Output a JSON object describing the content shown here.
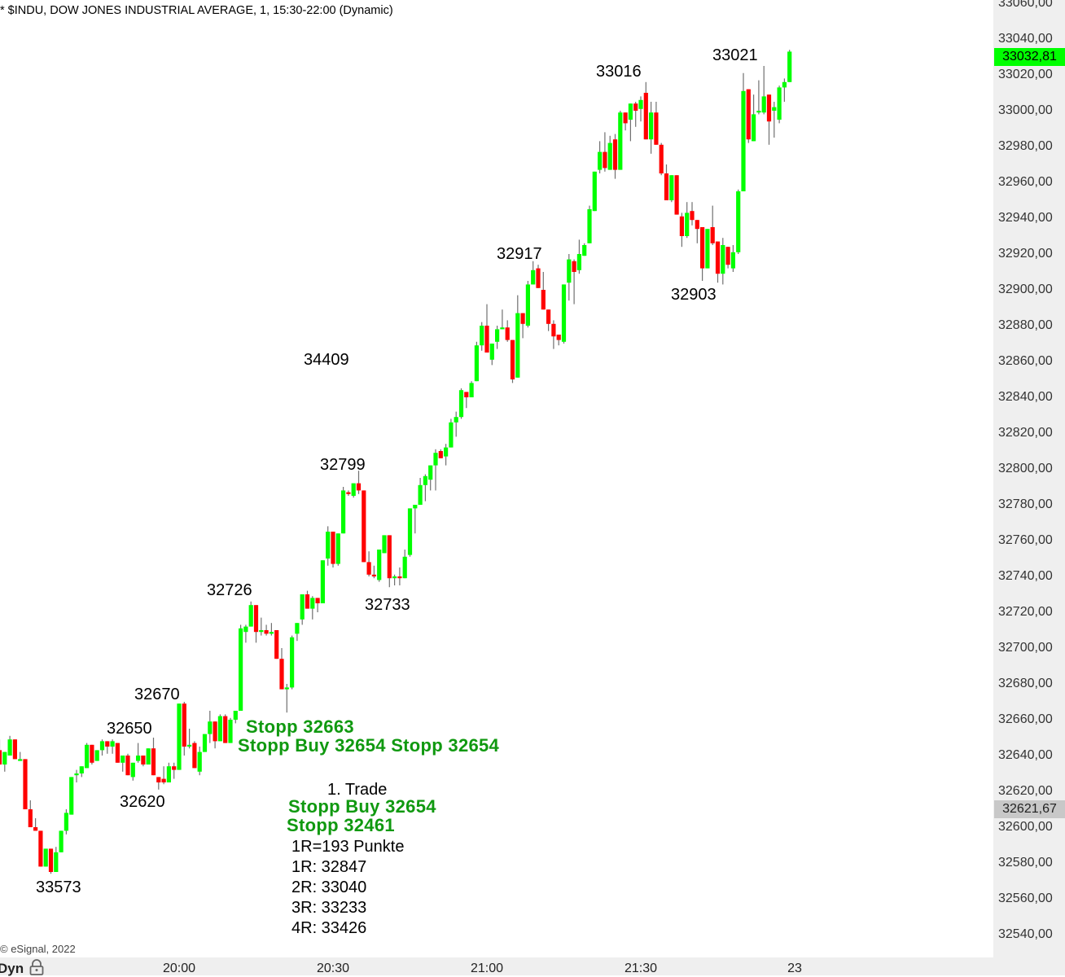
{
  "header": {
    "title": "* $INDU, DOW JONES INDUSTRIAL AVERAGE, 1, 15:30-22:00 (Dynamic)"
  },
  "footer": {
    "copyright": "© eSignal, 2022",
    "mode_label": "Dyn",
    "mode_icon": "lock-icon"
  },
  "price_tags": {
    "last": "33032,81",
    "last_color": "#00ff00",
    "crosshair": "32621,67"
  },
  "annotations": {
    "low_1": "33573",
    "low_2": "32620",
    "high_1": "32650",
    "high_2": "32670",
    "high_3": "32726",
    "high_4": "32799",
    "low_3": "32733",
    "misc": "34409",
    "high_5": "32917",
    "high_6": "33016",
    "low_4": "32903",
    "high_7": "33021",
    "stop_1": "Stopp 32663",
    "stop_2": "Stopp Buy 32654 Stopp 32654",
    "trade_title": "1. Trade",
    "trade_entry": "Stopp Buy 32654",
    "trade_stop": "Stopp 32461",
    "r_size": "1R=193 Punkte",
    "r1": "1R: 32847",
    "r2": "2R: 33040",
    "r3": "3R: 33233",
    "r4": "4R: 33426"
  },
  "chart_data": {
    "type": "candlestick",
    "title": "* $INDU, DOW JONES INDUSTRIAL AVERAGE, 1, 15:30-22:00 (Dynamic)",
    "ylim": [
      32540,
      33060
    ],
    "y_tick_labels": [
      "32540,00",
      "32560,00",
      "32580,00",
      "32600,00",
      "32620,00",
      "32640,00",
      "32660,00",
      "32680,00",
      "32700,00",
      "32720,00",
      "32740,00",
      "32760,00",
      "32780,00",
      "32800,00",
      "32820,00",
      "32840,00",
      "32860,00",
      "32880,00",
      "32900,00",
      "32920,00",
      "32940,00",
      "32960,00",
      "32980,00",
      "33000,00",
      "33020,00",
      "33040,00",
      "33060,00"
    ],
    "x_tick_labels": [
      {
        "time": "20:00",
        "label": "20:00"
      },
      {
        "time": "20:30",
        "label": "20:30"
      },
      {
        "time": "21:00",
        "label": "21:00"
      },
      {
        "time": "21:30",
        "label": "21:30"
      },
      {
        "time": "22:00",
        "label": "23"
      }
    ],
    "up_color": "#00ff00",
    "down_color": "#ff0000",
    "wick_color": "#707070",
    "grid": false,
    "columns": [
      "time",
      "open",
      "high",
      "low",
      "close"
    ],
    "candles": [
      [
        "19:25",
        32643,
        32649,
        32635,
        32635
      ],
      [
        "19:26",
        32635,
        32642,
        32631,
        32642
      ],
      [
        "19:27",
        32640,
        32651,
        32640,
        32649
      ],
      [
        "19:28",
        32649,
        32649,
        32638,
        32638
      ],
      [
        "19:29",
        32637,
        32642,
        32637,
        32638
      ],
      [
        "19:30",
        32638,
        32638,
        32610,
        32610
      ],
      [
        "19:31",
        32610,
        32615,
        32600,
        32600
      ],
      [
        "19:32",
        32600,
        32605,
        32598,
        32598
      ],
      [
        "19:33",
        32598,
        32598,
        32578,
        32578
      ],
      [
        "19:34",
        32578,
        32588,
        32578,
        32588
      ],
      [
        "19:35",
        32588,
        32588,
        32574,
        32575
      ],
      [
        "19:36",
        32575,
        32589,
        32575,
        32586
      ],
      [
        "19:37",
        32586,
        32598,
        32586,
        32598
      ],
      [
        "19:38",
        32598,
        32610,
        32596,
        32608
      ],
      [
        "19:39",
        32607,
        32628,
        32607,
        32628
      ],
      [
        "19:40",
        32629,
        32632,
        32625,
        32630
      ],
      [
        "19:41",
        32630,
        32634,
        32628,
        32634
      ],
      [
        "19:42",
        32633,
        32647,
        32633,
        32646
      ],
      [
        "19:43",
        32646,
        32646,
        32635,
        32636
      ],
      [
        "19:44",
        32637,
        32643,
        32637,
        32643
      ],
      [
        "19:45",
        32643,
        32649,
        32640,
        32648
      ],
      [
        "19:46",
        32648,
        32648,
        32641,
        32645
      ],
      [
        "19:47",
        32645,
        32649,
        32641,
        32648
      ],
      [
        "19:48",
        32647,
        32647,
        32636,
        32636
      ],
      [
        "19:49",
        32636,
        32640,
        32631,
        32640
      ],
      [
        "19:50",
        32640,
        32641,
        32629,
        32629
      ],
      [
        "19:51",
        32628,
        32636,
        32626,
        32636
      ],
      [
        "19:52",
        32637,
        32647,
        32636,
        32640
      ],
      [
        "19:53",
        32640,
        32640,
        32634,
        32635
      ],
      [
        "19:54",
        32635,
        32644,
        32635,
        32644
      ],
      [
        "19:55",
        32644,
        32650,
        32629,
        32629
      ],
      [
        "19:56",
        32628,
        32628,
        32621,
        32625
      ],
      [
        "19:57",
        32627,
        32634,
        32624,
        32625
      ],
      [
        "19:58",
        32625,
        32636,
        32625,
        32634
      ],
      [
        "19:59",
        32634,
        32636,
        32627,
        32632
      ],
      [
        "20:00",
        32632,
        32669,
        32632,
        32669
      ],
      [
        "20:01",
        32669,
        32670,
        32640,
        32645
      ],
      [
        "20:02",
        32645,
        32655,
        32644,
        32646
      ],
      [
        "20:03",
        32647,
        32648,
        32633,
        32633
      ],
      [
        "20:04",
        32631,
        32645,
        32629,
        32642
      ],
      [
        "20:05",
        32642,
        32652,
        32642,
        32652
      ],
      [
        "20:06",
        32652,
        32665,
        32647,
        32659
      ],
      [
        "20:07",
        32659,
        32659,
        32644,
        32648
      ],
      [
        "20:08",
        32648,
        32663,
        32648,
        32662
      ],
      [
        "20:09",
        32662,
        32663,
        32647,
        32647
      ],
      [
        "20:10",
        32647,
        32661,
        32647,
        32660
      ],
      [
        "20:11",
        32660,
        32665,
        32658,
        32665
      ],
      [
        "20:12",
        32665,
        32713,
        32665,
        32711
      ],
      [
        "20:13",
        32709,
        32713,
        32703,
        32712
      ],
      [
        "20:14",
        32712,
        32726,
        32712,
        32724
      ],
      [
        "20:15",
        32724,
        32724,
        32703,
        32709
      ],
      [
        "20:16",
        32709,
        32717,
        32707,
        32710
      ],
      [
        "20:17",
        32710,
        32713,
        32707,
        32708
      ],
      [
        "20:18",
        32708,
        32714,
        32707,
        32709
      ],
      [
        "20:19",
        32710,
        32710,
        32694,
        32694
      ],
      [
        "20:20",
        32694,
        32700,
        32677,
        32677
      ],
      [
        "20:21",
        32677,
        32680,
        32664,
        32678
      ],
      [
        "20:22",
        32678,
        32707,
        32677,
        32706
      ],
      [
        "20:23",
        32708,
        32714,
        32704,
        32714
      ],
      [
        "20:24",
        32716,
        32730,
        32713,
        32730
      ],
      [
        "20:25",
        32730,
        32732,
        32722,
        32722
      ],
      [
        "20:26",
        32722,
        32729,
        32716,
        32728
      ],
      [
        "20:27",
        32728,
        32728,
        32720,
        32725
      ],
      [
        "20:28",
        32725,
        32749,
        32725,
        32749
      ],
      [
        "20:29",
        32750,
        32768,
        32746,
        32765
      ],
      [
        "20:30",
        32765,
        32765,
        32745,
        32747
      ],
      [
        "20:31",
        32747,
        32764,
        32746,
        32764
      ],
      [
        "20:32",
        32764,
        32790,
        32764,
        32788
      ],
      [
        "20:33",
        32787,
        32788,
        32785,
        32786
      ],
      [
        "20:34",
        32785,
        32792,
        32784,
        32792
      ],
      [
        "20:35",
        32792,
        32799,
        32786,
        32788
      ],
      [
        "20:36",
        32788,
        32788,
        32748,
        32748
      ],
      [
        "20:37",
        32748,
        32754,
        32740,
        32741
      ],
      [
        "20:38",
        32741,
        32746,
        32739,
        32740
      ],
      [
        "20:39",
        32738,
        32755,
        32737,
        32755
      ],
      [
        "20:40",
        32753,
        32763,
        32753,
        32763
      ],
      [
        "20:41",
        32763,
        32763,
        32734,
        32739
      ],
      [
        "20:42",
        32739,
        32741,
        32735,
        32740
      ],
      [
        "20:43",
        32740,
        32745,
        32735,
        32739
      ],
      [
        "20:44",
        32739,
        32755,
        32739,
        32751
      ],
      [
        "20:45",
        32752,
        32778,
        32751,
        32778
      ],
      [
        "20:46",
        32778,
        32780,
        32764,
        32780
      ],
      [
        "20:47",
        32780,
        32795,
        32780,
        32791
      ],
      [
        "20:48",
        32791,
        32797,
        32782,
        32796
      ],
      [
        "20:49",
        32794,
        32802,
        32788,
        32802
      ],
      [
        "20:50",
        32802,
        32811,
        32788,
        32809
      ],
      [
        "20:51",
        32810,
        32811,
        32806,
        32806
      ],
      [
        "20:52",
        32807,
        32814,
        32802,
        32812
      ],
      [
        "20:53",
        32812,
        32828,
        32812,
        32826
      ],
      [
        "20:54",
        32826,
        32832,
        32818,
        32829
      ],
      [
        "20:55",
        32829,
        32845,
        32828,
        32844
      ],
      [
        "20:56",
        32843,
        32843,
        32834,
        32840
      ],
      [
        "20:57",
        32840,
        32849,
        32840,
        32848
      ],
      [
        "20:58",
        32849,
        32871,
        32849,
        32869
      ],
      [
        "20:59",
        32869,
        32882,
        32866,
        32880
      ],
      [
        "21:00",
        32880,
        32892,
        32865,
        32865
      ],
      [
        "21:01",
        32861,
        32870,
        32858,
        32870
      ],
      [
        "21:02",
        32871,
        32880,
        32867,
        32878
      ],
      [
        "21:03",
        32878,
        32889,
        32878,
        32879
      ],
      [
        "21:04",
        32879,
        32883,
        32871,
        32872
      ],
      [
        "21:05",
        32872,
        32872,
        32848,
        32850
      ],
      [
        "21:06",
        32851,
        32897,
        32851,
        32887
      ],
      [
        "21:07",
        32887,
        32887,
        32873,
        32881
      ],
      [
        "21:08",
        32880,
        32905,
        32879,
        32903
      ],
      [
        "21:09",
        32903,
        32916,
        32903,
        32911
      ],
      [
        "21:10",
        32912,
        32914,
        32901,
        32901
      ],
      [
        "21:11",
        32900,
        32910,
        32889,
        32889
      ],
      [
        "21:12",
        32889,
        32889,
        32877,
        32881
      ],
      [
        "21:13",
        32881,
        32883,
        32867,
        32874
      ],
      [
        "21:14",
        32875,
        32875,
        32869,
        32872
      ],
      [
        "21:15",
        32871,
        32903,
        32870,
        32903
      ],
      [
        "21:16",
        32904,
        32920,
        32894,
        32917
      ],
      [
        "21:17",
        32916,
        32917,
        32892,
        32910
      ],
      [
        "21:18",
        32911,
        32928,
        32909,
        32920
      ],
      [
        "21:19",
        32919,
        32926,
        32919,
        32925
      ],
      [
        "21:20",
        32926,
        32947,
        32926,
        32945
      ],
      [
        "21:21",
        32944,
        32966,
        32944,
        32966
      ],
      [
        "21:22",
        32967,
        32983,
        32965,
        32977
      ],
      [
        "21:23",
        32977,
        32988,
        32966,
        32968
      ],
      [
        "21:24",
        32967,
        32986,
        32967,
        32982
      ],
      [
        "21:25",
        32984,
        32987,
        32962,
        32967
      ],
      [
        "21:26",
        32967,
        33000,
        32967,
        32999
      ],
      [
        "21:27",
        32999,
        32999,
        32989,
        32993
      ],
      [
        "21:28",
        32995,
        33004,
        32983,
        33004
      ],
      [
        "21:29",
        33004,
        33005,
        32991,
        33000
      ],
      [
        "21:30",
        33001,
        33008,
        32994,
        33006
      ],
      [
        "21:31",
        33010,
        33016,
        32984,
        32984
      ],
      [
        "21:32",
        32984,
        33005,
        32976,
        32999
      ],
      [
        "21:33",
        32999,
        33005,
        32981,
        32981
      ],
      [
        "21:34",
        32981,
        32982,
        32964,
        32965
      ],
      [
        "21:35",
        32965,
        32970,
        32950,
        32950
      ],
      [
        "21:36",
        32950,
        32964,
        32949,
        32964
      ],
      [
        "21:37",
        32964,
        32964,
        32942,
        32942
      ],
      [
        "21:38",
        32941,
        32943,
        32924,
        32930
      ],
      [
        "21:39",
        32930,
        32949,
        32929,
        32943
      ],
      [
        "21:40",
        32944,
        32949,
        32936,
        32939
      ],
      [
        "21:41",
        32939,
        32939,
        32926,
        32934
      ],
      [
        "21:42",
        32935,
        32935,
        32905,
        32912
      ],
      [
        "21:43",
        32912,
        32934,
        32912,
        32934
      ],
      [
        "21:44",
        32935,
        32947,
        32925,
        32926
      ],
      [
        "21:45",
        32927,
        32927,
        32904,
        32909
      ],
      [
        "21:46",
        32909,
        32929,
        32903,
        32925
      ],
      [
        "21:47",
        32924,
        32924,
        32912,
        32914
      ],
      [
        "21:48",
        32912,
        32925,
        32910,
        32921
      ],
      [
        "21:49",
        32921,
        32956,
        32920,
        32955
      ],
      [
        "21:50",
        32955,
        33021,
        32955,
        33011
      ],
      [
        "21:51",
        33012,
        33012,
        32982,
        32984
      ],
      [
        "21:52",
        32983,
        33009,
        32983,
        32998
      ],
      [
        "21:53",
        32999,
        33017,
        32998,
        33000
      ],
      [
        "21:54",
        32999,
        33025,
        32998,
        33008
      ],
      [
        "21:55",
        33009,
        33009,
        32981,
        32994
      ],
      [
        "21:56",
        33000,
        33005,
        32985,
        33002
      ],
      [
        "21:57",
        32995,
        33014,
        32993,
        33013
      ],
      [
        "21:58",
        33013,
        33018,
        33005,
        33016
      ],
      [
        "21:59",
        33016,
        33034,
        33016,
        33033
      ]
    ]
  }
}
